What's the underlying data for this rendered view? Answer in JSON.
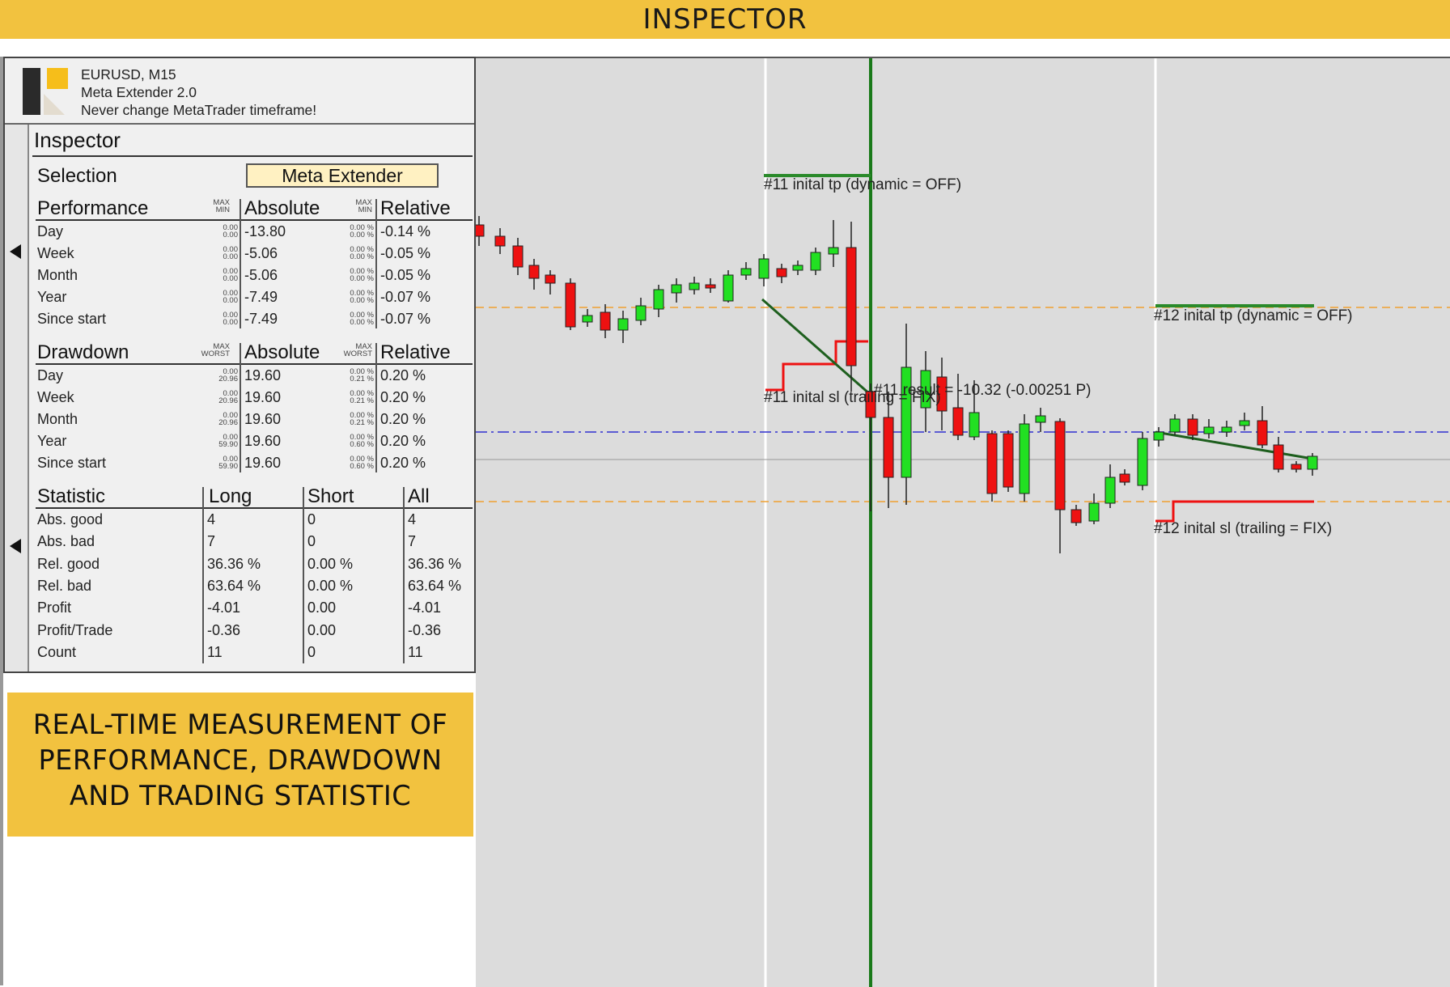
{
  "banner": {
    "title": "INSPECTOR"
  },
  "header": {
    "line1": "EURUSD, M15",
    "line2": "Meta Extender 2.0",
    "line3": "Never change MetaTrader timeframe!"
  },
  "inspector": {
    "title": "Inspector",
    "selection_label": "Selection",
    "selection_value": "Meta Extender"
  },
  "performance": {
    "title": "Performance",
    "col_abs": "Absolute",
    "col_rel": "Relative",
    "sub_abs_top": "MAX",
    "sub_abs_bot": "MIN",
    "sub_rel_top": "MAX",
    "sub_rel_bot": "MIN",
    "rows": [
      {
        "label": "Day",
        "abs": "-13.80",
        "rel": "-0.14 %",
        "amax": "0.00",
        "amin": "0.00",
        "rmax": "0.00 %",
        "rmin": "0.00 %"
      },
      {
        "label": "Week",
        "abs": "-5.06",
        "rel": "-0.05 %",
        "amax": "0.00",
        "amin": "0.00",
        "rmax": "0.00 %",
        "rmin": "0.00 %"
      },
      {
        "label": "Month",
        "abs": "-5.06",
        "rel": "-0.05 %",
        "amax": "0.00",
        "amin": "0.00",
        "rmax": "0.00 %",
        "rmin": "0.00 %"
      },
      {
        "label": "Year",
        "abs": "-7.49",
        "rel": "-0.07 %",
        "amax": "0.00",
        "amin": "0.00",
        "rmax": "0.00 %",
        "rmin": "0.00 %"
      },
      {
        "label": "Since start",
        "abs": "-7.49",
        "rel": "-0.07 %",
        "amax": "0.00",
        "amin": "0.00",
        "rmax": "0.00 %",
        "rmin": "0.00 %"
      }
    ]
  },
  "drawdown": {
    "title": "Drawdown",
    "col_abs": "Absolute",
    "col_rel": "Relative",
    "sub_abs_top": "MAX",
    "sub_abs_bot": "WORST",
    "sub_rel_top": "MAX",
    "sub_rel_bot": "WORST",
    "rows": [
      {
        "label": "Day",
        "abs": "19.60",
        "rel": "0.20 %",
        "amax": "0.00",
        "amin": "20.96",
        "rmax": "0.00 %",
        "rmin": "0.21 %"
      },
      {
        "label": "Week",
        "abs": "19.60",
        "rel": "0.20 %",
        "amax": "0.00",
        "amin": "20.96",
        "rmax": "0.00 %",
        "rmin": "0.21 %"
      },
      {
        "label": "Month",
        "abs": "19.60",
        "rel": "0.20 %",
        "amax": "0.00",
        "amin": "20.96",
        "rmax": "0.00 %",
        "rmin": "0.21 %"
      },
      {
        "label": "Year",
        "abs": "19.60",
        "rel": "0.20 %",
        "amax": "0.00",
        "amin": "59.90",
        "rmax": "0.00 %",
        "rmin": "0.60 %"
      },
      {
        "label": "Since start",
        "abs": "19.60",
        "rel": "0.20 %",
        "amax": "0.00",
        "amin": "59.90",
        "rmax": "0.00 %",
        "rmin": "0.60 %"
      }
    ]
  },
  "statistic": {
    "title": "Statistic",
    "col_long": "Long",
    "col_short": "Short",
    "col_all": "All",
    "rows": [
      {
        "label": "Abs. good",
        "long": "4",
        "short": "0",
        "all": "4"
      },
      {
        "label": "Abs. bad",
        "long": "7",
        "short": "0",
        "all": "7"
      },
      {
        "label": "Rel. good",
        "long": "36.36 %",
        "short": "0.00 %",
        "all": "36.36 %"
      },
      {
        "label": "Rel. bad",
        "long": "63.64 %",
        "short": "0.00 %",
        "all": "63.64 %"
      },
      {
        "label": "Profit",
        "long": "-4.01",
        "short": "0.00",
        "all": "-4.01"
      },
      {
        "label": "Profit/Trade",
        "long": "-0.36",
        "short": "0.00",
        "all": "-0.36"
      },
      {
        "label": "Count",
        "long": "11",
        "short": "0",
        "all": "11"
      }
    ]
  },
  "chart": {
    "labels": {
      "tp11": "#11 inital tp (dynamic = OFF)",
      "sl11": "#11 inital sl (trailing = FIX)",
      "result11": "#11 result = -10.32 (-0.00251 P)",
      "tp12": "#12 inital tp (dynamic = OFF)",
      "sl12": "#12 inital sl (trailing = FIX)"
    },
    "colors": {
      "bull": "#22e022",
      "bear": "#ee1111",
      "trade_line": "#1e5f1e",
      "sl": "#ee1111",
      "tp": "#2a8a2a",
      "orange_level": "#f0a030",
      "blue_level": "#3030d0",
      "vline": "#1a7a1a"
    }
  },
  "caption": {
    "line1": "REAL-TIME MEASUREMENT OF",
    "line2": "PERFORMANCE, DRAWDOWN",
    "line3": "AND TRADING STATISTIC"
  }
}
